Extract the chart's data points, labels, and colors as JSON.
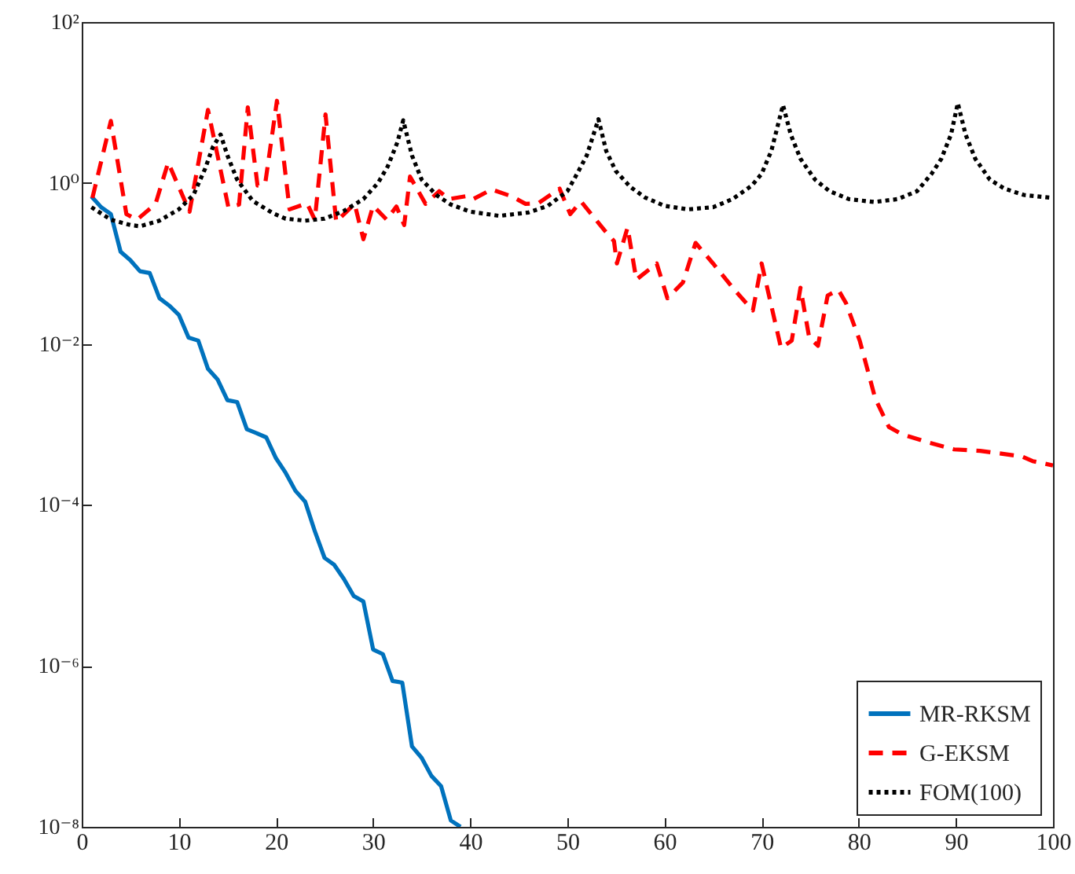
{
  "chart_data": {
    "type": "line",
    "xlim": [
      0,
      100
    ],
    "xticks": [
      0,
      10,
      20,
      30,
      40,
      50,
      60,
      70,
      80,
      90,
      100
    ],
    "ylim": [
      1e-08,
      100
    ],
    "yticks": [
      {
        "value": 100,
        "label": "10²"
      },
      {
        "value": 1,
        "label": "10⁰"
      },
      {
        "value": 0.01,
        "label": "10⁻²"
      },
      {
        "value": 0.0001,
        "label": "10⁻⁴"
      },
      {
        "value": 1e-06,
        "label": "10⁻⁶"
      },
      {
        "value": 1e-08,
        "label": "10⁻⁸"
      }
    ],
    "log": "y",
    "grid": false,
    "legend": "bottom right",
    "marker": "none",
    "series": [
      {
        "name": "MR-RKSM",
        "color": "#0072bd",
        "line_style": "solid",
        "x": [
          1,
          2,
          3,
          4,
          5,
          6,
          7,
          8,
          9,
          10,
          11,
          12,
          13,
          14,
          15,
          16,
          17,
          18,
          19,
          20,
          21,
          22,
          23,
          24,
          25,
          26,
          27,
          28,
          29,
          30,
          31,
          32,
          33,
          34,
          35,
          36,
          37,
          38,
          39
        ],
        "values": [
          0.68,
          0.5,
          0.41,
          0.14,
          0.11,
          0.08,
          0.076,
          0.037,
          0.03,
          0.023,
          0.012,
          0.011,
          0.0049,
          0.0036,
          0.002,
          0.0019,
          0.00087,
          0.00078,
          0.00069,
          0.00038,
          0.00025,
          0.00015,
          0.00011,
          4.7e-05,
          2.2e-05,
          1.8e-05,
          1.2e-05,
          7.4e-06,
          6.3e-06,
          1.6e-06,
          1.4e-06,
          6.5e-07,
          6.2e-07,
          1e-07,
          7.2e-08,
          4.3e-08,
          3.2e-08,
          1.2e-08,
          1e-08
        ]
      },
      {
        "name": "G-EKSM",
        "color": "#ff0000",
        "line_style": "dashed",
        "x": [
          1.1,
          3,
          4.6,
          5.7,
          7.6,
          8.9,
          11.1,
          13,
          15.1,
          16.2,
          17.1,
          18.1,
          18.9,
          20.1,
          21.4,
          23.2,
          24,
          25.1,
          26.2,
          28.1,
          29,
          30,
          31.4,
          32.4,
          33.2,
          33.8,
          35.4,
          36.8,
          37.8,
          39.7,
          40.3,
          42.2,
          44.3,
          45.7,
          47,
          49.2,
          50.3,
          51.4,
          53.8,
          54.8,
          55.1,
          56.2,
          57.1,
          59.2,
          60.3,
          61.9,
          63.2,
          65,
          67.2,
          69.1,
          70,
          72,
          73.1,
          74,
          74.9,
          75.8,
          76.8,
          77.9,
          78.7,
          80.1,
          81.7,
          83.1,
          84.4,
          87.1,
          89.8,
          92.5,
          96.8,
          97.9,
          100
        ],
        "values": [
          0.65,
          5.9,
          0.41,
          0.35,
          0.55,
          1.8,
          0.44,
          8.1,
          0.5,
          0.54,
          8.7,
          0.93,
          1.0,
          10.5,
          0.47,
          0.56,
          0.35,
          7.1,
          0.33,
          0.55,
          0.2,
          0.52,
          0.35,
          0.51,
          0.3,
          1.2,
          0.55,
          0.79,
          0.63,
          0.69,
          0.63,
          0.83,
          0.68,
          0.55,
          0.56,
          0.85,
          0.41,
          0.59,
          0.26,
          0.19,
          0.1,
          0.28,
          0.063,
          0.1,
          0.037,
          0.058,
          0.18,
          0.1,
          0.047,
          0.026,
          0.1,
          0.0089,
          0.011,
          0.05,
          0.012,
          0.0095,
          0.04,
          0.047,
          0.032,
          0.011,
          0.0021,
          0.00093,
          0.00076,
          0.0006,
          0.00049,
          0.00047,
          0.0004,
          0.00035,
          0.00031
        ]
      },
      {
        "name": "FOM(100)",
        "color": "#000000",
        "line_style": "dotted",
        "x": [
          1,
          3,
          5,
          6,
          8,
          10,
          11.5,
          12.7,
          13.5,
          14.3,
          15,
          16,
          17.6,
          19.7,
          21,
          23,
          25,
          27,
          29,
          30.5,
          31.5,
          32.5,
          33.1,
          34,
          35,
          36.5,
          38,
          40,
          43,
          46,
          48,
          50,
          51,
          52,
          53.2,
          54,
          55,
          56.5,
          58,
          60,
          62.4,
          65,
          67,
          69,
          70,
          71,
          72.2,
          73,
          74,
          75.5,
          77,
          79,
          81.6,
          84,
          86,
          87.5,
          88.5,
          89.5,
          90.2,
          91,
          92,
          93.5,
          95,
          97,
          100
        ],
        "values": [
          0.5,
          0.35,
          0.3,
          0.29,
          0.34,
          0.47,
          0.71,
          1.5,
          2.8,
          4.0,
          2.2,
          1.1,
          0.6,
          0.42,
          0.36,
          0.34,
          0.36,
          0.45,
          0.63,
          1.0,
          1.6,
          3.2,
          6.0,
          2.2,
          1.1,
          0.71,
          0.54,
          0.44,
          0.39,
          0.43,
          0.52,
          0.79,
          1.3,
          2.2,
          6.2,
          2.5,
          1.4,
          0.89,
          0.66,
          0.52,
          0.47,
          0.5,
          0.63,
          0.93,
          1.3,
          2.5,
          9.3,
          4.0,
          2.0,
          1.1,
          0.79,
          0.63,
          0.58,
          0.63,
          0.79,
          1.3,
          2.0,
          4.0,
          9.8,
          4.0,
          2.0,
          1.1,
          0.85,
          0.71,
          0.65
        ]
      }
    ]
  }
}
